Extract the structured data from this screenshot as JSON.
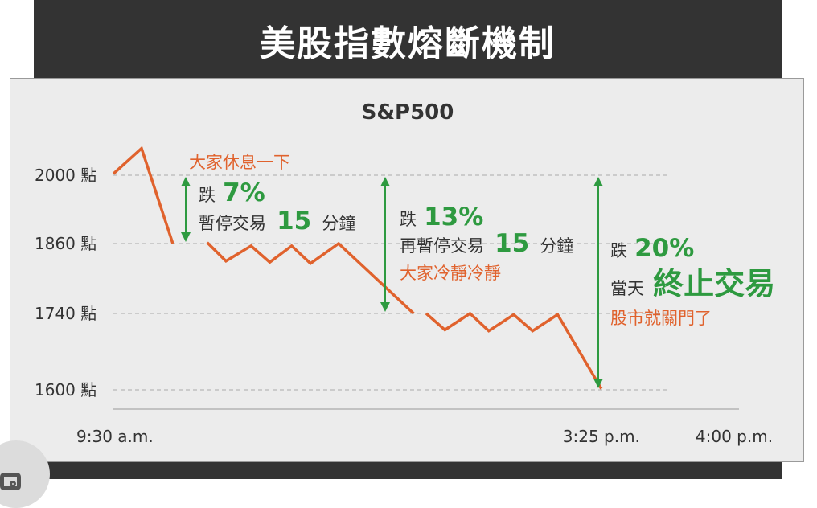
{
  "header": {
    "title": "美股指數熔斷機制"
  },
  "colors": {
    "price_line": "#e0622d",
    "arrow": "#2e9a40",
    "green_text": "#2e9a40",
    "orange_text": "#e0622d",
    "grid": "#aaaaaa",
    "text": "#333333"
  },
  "chart_data": {
    "type": "line",
    "title": "S&P500",
    "y_unit": "點",
    "yticks": [
      2000,
      1860,
      1740,
      1600
    ],
    "ytick_labels": [
      "2000 點",
      "1860 點",
      "1740 點",
      "1600 點"
    ],
    "x_labels": [
      {
        "x": 0,
        "label": "9:30 a.m."
      },
      {
        "x": 0.78,
        "label": "3:25 p.m."
      },
      {
        "x": 1.0,
        "label": "4:00 p.m."
      }
    ],
    "series": [
      {
        "segments": [
          [
            [
              0.0,
              2003
            ],
            [
              0.045,
              2055
            ],
            [
              0.095,
              1860
            ]
          ],
          [
            [
              0.15,
              1862
            ],
            [
              0.18,
              1830
            ],
            [
              0.22,
              1856
            ],
            [
              0.25,
              1828
            ],
            [
              0.285,
              1856
            ],
            [
              0.315,
              1826
            ],
            [
              0.36,
              1860
            ],
            [
              0.48,
              1740
            ]
          ],
          [
            [
              0.5,
              1740
            ],
            [
              0.53,
              1710
            ],
            [
              0.57,
              1740
            ],
            [
              0.6,
              1708
            ],
            [
              0.64,
              1738
            ],
            [
              0.67,
              1708
            ],
            [
              0.71,
              1738
            ],
            [
              0.78,
              1602
            ]
          ]
        ]
      }
    ],
    "annotations": {
      "stage1": {
        "note": "大家休息一下",
        "drop_prefix": "跌",
        "drop_pct": "7%",
        "halt_text": "暫停交易",
        "halt_min": "15",
        "halt_unit": "分鐘"
      },
      "stage2": {
        "drop_prefix": "跌",
        "drop_pct": "13%",
        "halt_text": "再暫停交易",
        "halt_min": "15",
        "halt_unit": "分鐘",
        "note": "大家冷靜冷靜"
      },
      "stage3": {
        "drop_prefix": "跌",
        "drop_pct": "20%",
        "day_label": "當天",
        "stop_text": "終止交易",
        "note": "股市就關門了"
      }
    }
  }
}
